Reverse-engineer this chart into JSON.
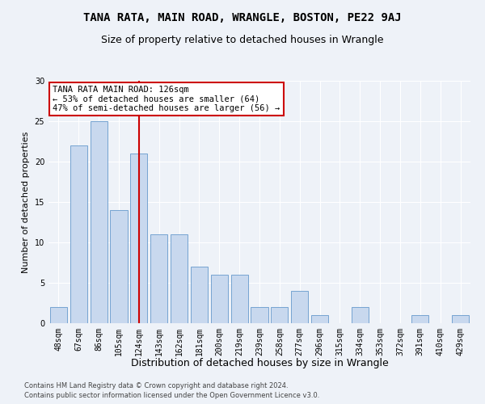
{
  "title": "TANA RATA, MAIN ROAD, WRANGLE, BOSTON, PE22 9AJ",
  "subtitle": "Size of property relative to detached houses in Wrangle",
  "xlabel": "Distribution of detached houses by size in Wrangle",
  "ylabel": "Number of detached properties",
  "categories": [
    "48sqm",
    "67sqm",
    "86sqm",
    "105sqm",
    "124sqm",
    "143sqm",
    "162sqm",
    "181sqm",
    "200sqm",
    "219sqm",
    "239sqm",
    "258sqm",
    "277sqm",
    "296sqm",
    "315sqm",
    "334sqm",
    "353sqm",
    "372sqm",
    "391sqm",
    "410sqm",
    "429sqm"
  ],
  "values": [
    2,
    22,
    25,
    14,
    21,
    11,
    11,
    7,
    6,
    6,
    2,
    2,
    4,
    1,
    0,
    2,
    0,
    0,
    1,
    0,
    1
  ],
  "bar_color": "#c8d8ee",
  "bar_edge_color": "#6699cc",
  "vline_x_index": 4,
  "vline_color": "#cc0000",
  "annotation_text": "TANA RATA MAIN ROAD: 126sqm\n← 53% of detached houses are smaller (64)\n47% of semi-detached houses are larger (56) →",
  "annotation_box_color": "#ffffff",
  "annotation_box_edge": "#cc0000",
  "ylim": [
    0,
    30
  ],
  "yticks": [
    0,
    5,
    10,
    15,
    20,
    25,
    30
  ],
  "footer1": "Contains HM Land Registry data © Crown copyright and database right 2024.",
  "footer2": "Contains public sector information licensed under the Open Government Licence v3.0.",
  "bg_color": "#eef2f8",
  "plot_bg_color": "#eef2f8",
  "title_fontsize": 10,
  "subtitle_fontsize": 9,
  "tick_fontsize": 7,
  "ylabel_fontsize": 8,
  "xlabel_fontsize": 9,
  "footer_fontsize": 6,
  "annotation_fontsize": 7.5
}
